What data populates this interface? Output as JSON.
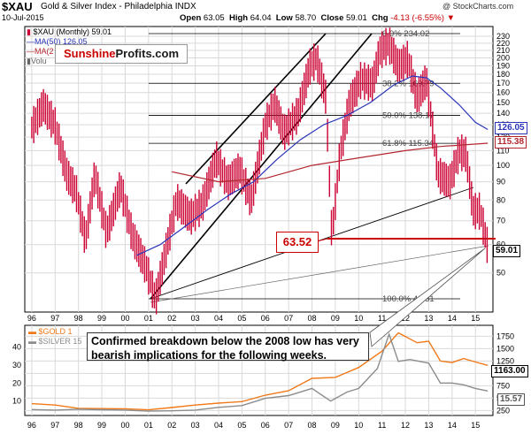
{
  "header": {
    "ticker": "$XAU",
    "index_name": "Gold & Silver Index - Philadelphia INDX",
    "date": "10-Jul-2015",
    "open_label": "Open",
    "open": "63.05",
    "high_label": "High",
    "high": "64.04",
    "low_label": "Low",
    "low": "58.70",
    "close_label": "Close",
    "close": "59.01",
    "chg_label": "Chg",
    "chg": "-4.13 (-6.55%)",
    "chg_icon": "down-triangle-icon",
    "credit": "@ StockCharts.com"
  },
  "legend": {
    "main": "$XAU (Monthly) 59.01",
    "ma50": "MA(50) 126.05",
    "ma200": "MA(2",
    "volume": "Volu"
  },
  "brand": {
    "part1": "Sunshine",
    "part2": "Profits.com"
  },
  "callouts": {
    "support": "63.52",
    "breakdown": "Confirmed breakdown below the 2008 low has very bearish implications for the following weeks."
  },
  "fibonacci": [
    {
      "label": "0.0% 234.02",
      "value": 234.02
    },
    {
      "label": "38.2% 169.79",
      "value": 169.79
    },
    {
      "label": "50.0% 138.17",
      "value": 138.17
    },
    {
      "label": "61.8% 115.34",
      "value": 115.34
    },
    {
      "label": "100.0% 42.31",
      "value": 42.31
    }
  ],
  "price_tags": {
    "ma50": "126.05",
    "ma200": "115.38",
    "last": "59.01",
    "gold": "1163.00",
    "silver": "15.57"
  },
  "colors": {
    "price_bars": "#cc0033",
    "ma50": "#2a34b8",
    "ma200": "#b3262e",
    "support_line": "#cc0000",
    "gold": "#f07a1a",
    "silver": "#8c8c8c",
    "grid": "#d9d9d9"
  },
  "chart_data": [
    {
      "type": "line",
      "title": "$XAU Gold & Silver Index - Philadelphia INDX (Monthly)",
      "x_ticks": [
        "96",
        "97",
        "98",
        "99",
        "00",
        "01",
        "02",
        "03",
        "04",
        "05",
        "06",
        "07",
        "08",
        "09",
        "10",
        "11",
        "12",
        "13",
        "14",
        "15"
      ],
      "y_scale": "log",
      "y_ticks": [
        50,
        60,
        70,
        80,
        90,
        100,
        110,
        120,
        130,
        140,
        150,
        160,
        170,
        180,
        190,
        200,
        210,
        220,
        230
      ],
      "ylim": [
        40,
        240
      ],
      "grid": true,
      "series": [
        {
          "name": "$XAU",
          "x": [
            1996.0,
            1996.5,
            1997.0,
            1997.5,
            1997.9,
            1998.3,
            1998.7,
            1999.2,
            1999.8,
            2000.3,
            2000.9,
            2001.3,
            2002.2,
            2002.8,
            2003.3,
            2003.9,
            2004.4,
            2004.9,
            2005.4,
            2006.0,
            2006.4,
            2006.8,
            2007.4,
            2007.9,
            2008.2,
            2008.6,
            2008.85,
            2009.2,
            2009.6,
            2010.1,
            2010.6,
            2010.9,
            2011.3,
            2011.7,
            2012.1,
            2012.5,
            2012.9,
            2013.4,
            2013.9,
            2014.3,
            2014.6,
            2014.9,
            2015.2,
            2015.53
          ],
          "values": [
            128,
            148,
            130,
            95,
            85,
            62,
            95,
            65,
            88,
            64,
            52,
            42.3,
            80,
            72,
            78,
            105,
            90,
            98,
            80,
            130,
            150,
            124,
            140,
            190,
            200,
            155,
            63.5,
            108,
            150,
            175,
            170,
            210,
            220,
            190,
            200,
            155,
            175,
            95,
            90,
            110,
            108,
            75,
            75,
            59.01
          ]
        },
        {
          "name": "MA(50)",
          "x": [
            2000.5,
            2001.5,
            2002.5,
            2003.5,
            2004.5,
            2005.5,
            2006.5,
            2007.5,
            2008.5,
            2009.5,
            2010.5,
            2011.5,
            2012.3,
            2012.9,
            2013.5,
            2014.3,
            2015.0,
            2015.53
          ],
          "values": [
            56,
            60,
            67,
            75,
            83,
            90,
            104,
            118,
            130,
            138,
            150,
            168,
            178,
            176,
            165,
            148,
            132,
            126.05
          ]
        },
        {
          "name": "MA(200)",
          "x": [
            2002.0,
            2004.0,
            2006.0,
            2008.0,
            2010.0,
            2012.0,
            2013.5,
            2015.53
          ],
          "values": [
            96,
            90,
            92,
            100,
            105,
            110,
            113,
            115.38
          ]
        }
      ],
      "annotations": [
        "63.52",
        "Confirmed breakdown below the 2008 low has very bearish implications for the following weeks."
      ]
    },
    {
      "type": "line",
      "x_ticks": [
        "96",
        "97",
        "98",
        "99",
        "00",
        "01",
        "02",
        "03",
        "04",
        "05",
        "06",
        "07",
        "08",
        "09",
        "10",
        "11",
        "12",
        "13",
        "14",
        "15"
      ],
      "y_left_ticks": [
        10,
        20,
        30,
        40
      ],
      "y_right_ticks": [
        250,
        500,
        750,
        1000,
        1250,
        1500,
        1750
      ],
      "grid": true,
      "series": [
        {
          "name": "$GOLD",
          "axis": "right",
          "x": [
            1996.0,
            1997.0,
            1998.0,
            1999.0,
            2000.0,
            2001.0,
            2002.0,
            2003.0,
            2004.0,
            2005.0,
            2006.0,
            2007.0,
            2008.0,
            2009.0,
            2010.0,
            2011.0,
            2011.7,
            2012.5,
            2013.0,
            2013.5,
            2014.0,
            2014.5,
            2015.0,
            2015.53
          ],
          "values": [
            390,
            360,
            295,
            290,
            285,
            265,
            310,
            360,
            400,
            430,
            560,
            650,
            900,
            920,
            1120,
            1450,
            1820,
            1620,
            1650,
            1250,
            1220,
            1300,
            1230,
            1163.0
          ]
        },
        {
          "name": "$SILVER",
          "axis": "left",
          "x": [
            1996.0,
            1997.0,
            1998.0,
            1999.0,
            2000.0,
            2001.0,
            2002.0,
            2003.0,
            2004.0,
            2005.0,
            2006.0,
            2007.0,
            2008.0,
            2008.8,
            2009.5,
            2010.0,
            2010.8,
            2011.3,
            2011.7,
            2012.2,
            2013.0,
            2013.5,
            2014.0,
            2014.5,
            2015.0,
            2015.53
          ],
          "values": [
            5.3,
            5.0,
            5.5,
            5.2,
            5.0,
            4.4,
            4.6,
            5.0,
            6.5,
            7.5,
            11.5,
            13.0,
            17.0,
            10.0,
            15.0,
            17.0,
            28.0,
            47.0,
            32.0,
            33.0,
            31.0,
            20.0,
            20.0,
            19.0,
            17.0,
            15.57
          ]
        }
      ]
    }
  ]
}
